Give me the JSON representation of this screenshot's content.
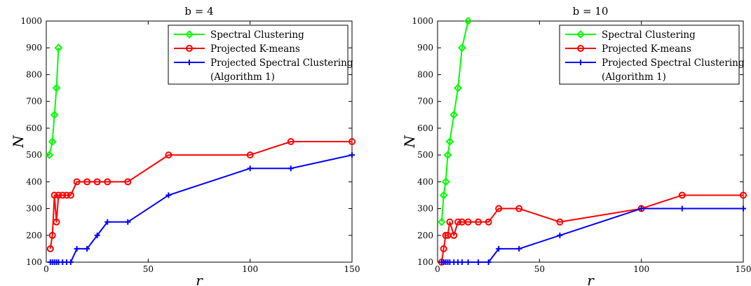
{
  "chart_data": [
    {
      "type": "line",
      "title": "b = 4",
      "xlabel": "r",
      "ylabel": "N",
      "xlim": [
        0,
        150
      ],
      "ylim": [
        100,
        1000
      ],
      "xticks": [
        0,
        50,
        100,
        150
      ],
      "yticks": [
        100,
        200,
        300,
        400,
        500,
        600,
        700,
        800,
        900,
        1000
      ],
      "grid": false,
      "legend_position": "top-right",
      "series": [
        {
          "name": "Spectral Clustering",
          "color": "#00ff00",
          "marker": "diamond",
          "points": [
            [
              1.5,
              500
            ],
            [
              3,
              550
            ],
            [
              4,
              650
            ],
            [
              5,
              750
            ],
            [
              6,
              900
            ]
          ]
        },
        {
          "name": "Projected K-means",
          "color": "#ff0000",
          "marker": "circle",
          "points": [
            [
              2,
              150
            ],
            [
              3,
              200
            ],
            [
              4,
              350
            ],
            [
              5,
              250
            ],
            [
              6,
              350
            ],
            [
              8,
              350
            ],
            [
              10,
              350
            ],
            [
              12,
              350
            ],
            [
              15,
              400
            ],
            [
              20,
              400
            ],
            [
              25,
              400
            ],
            [
              30,
              400
            ],
            [
              40,
              400
            ],
            [
              60,
              500
            ],
            [
              100,
              500
            ],
            [
              120,
              550
            ],
            [
              150,
              550
            ]
          ]
        },
        {
          "name": "Projected Spectral Clustering",
          "name_line2": "(Algorithm 1)",
          "color": "#0000ff",
          "marker": "plus",
          "points": [
            [
              2,
              100
            ],
            [
              3,
              100
            ],
            [
              4,
              100
            ],
            [
              5,
              100
            ],
            [
              6,
              100
            ],
            [
              8,
              100
            ],
            [
              10,
              100
            ],
            [
              12,
              100
            ],
            [
              15,
              150
            ],
            [
              20,
              150
            ],
            [
              25,
              200
            ],
            [
              30,
              250
            ],
            [
              40,
              250
            ],
            [
              60,
              350
            ],
            [
              100,
              450
            ],
            [
              120,
              450
            ],
            [
              150,
              500
            ]
          ]
        }
      ]
    },
    {
      "type": "line",
      "title": "b = 10",
      "xlabel": "r",
      "ylabel": "N",
      "xlim": [
        0,
        150
      ],
      "ylim": [
        100,
        1000
      ],
      "xticks": [
        0,
        50,
        100,
        150
      ],
      "yticks": [
        100,
        200,
        300,
        400,
        500,
        600,
        700,
        800,
        900,
        1000
      ],
      "grid": false,
      "legend_position": "top-right",
      "series": [
        {
          "name": "Spectral Clustering",
          "color": "#00ff00",
          "marker": "diamond",
          "points": [
            [
              2,
              250
            ],
            [
              3,
              350
            ],
            [
              4,
              400
            ],
            [
              5,
              500
            ],
            [
              6,
              550
            ],
            [
              8,
              650
            ],
            [
              10,
              750
            ],
            [
              12,
              900
            ],
            [
              15,
              1000
            ]
          ]
        },
        {
          "name": "Projected K-means",
          "color": "#ff0000",
          "marker": "circle",
          "points": [
            [
              2,
              100
            ],
            [
              3,
              150
            ],
            [
              4,
              200
            ],
            [
              5,
              200
            ],
            [
              6,
              250
            ],
            [
              8,
              200
            ],
            [
              10,
              250
            ],
            [
              12,
              250
            ],
            [
              15,
              250
            ],
            [
              20,
              250
            ],
            [
              25,
              250
            ],
            [
              30,
              300
            ],
            [
              40,
              300
            ],
            [
              60,
              250
            ],
            [
              100,
              300
            ],
            [
              120,
              350
            ],
            [
              150,
              350
            ]
          ]
        },
        {
          "name": "Projected Spectral Clustering",
          "name_line2": "(Algorithm 1)",
          "color": "#0000ff",
          "marker": "plus",
          "points": [
            [
              2,
              100
            ],
            [
              3,
              100
            ],
            [
              4,
              100
            ],
            [
              5,
              100
            ],
            [
              6,
              100
            ],
            [
              8,
              100
            ],
            [
              10,
              100
            ],
            [
              12,
              100
            ],
            [
              15,
              100
            ],
            [
              20,
              100
            ],
            [
              25,
              100
            ],
            [
              30,
              150
            ],
            [
              40,
              150
            ],
            [
              60,
              200
            ],
            [
              100,
              300
            ],
            [
              120,
              300
            ],
            [
              150,
              300
            ]
          ]
        }
      ]
    }
  ]
}
